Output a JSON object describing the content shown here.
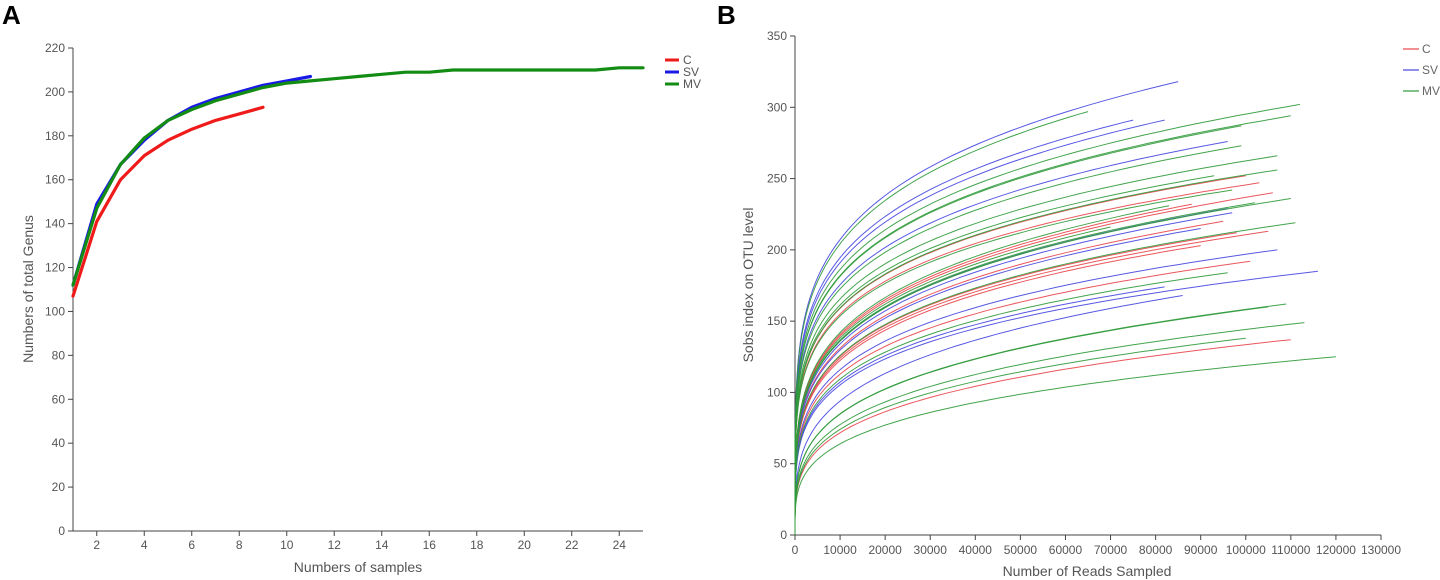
{
  "colors": {
    "C": "#ef1a1a",
    "SV": "#1a1ae6",
    "MV": "#138c13",
    "C_thin": "#e8454b",
    "SV_thin": "#4646e0",
    "MV_thin": "#2f9a3a"
  },
  "chart_data": [
    {
      "panel": "A",
      "type": "line",
      "title": "",
      "xlabel": "Numbers of samples",
      "ylabel": "Numbers of total Genus",
      "xlim": [
        1,
        25
      ],
      "ylim": [
        0,
        220
      ],
      "xticks": [
        2,
        4,
        6,
        8,
        10,
        12,
        14,
        16,
        18,
        20,
        22,
        24
      ],
      "yticks": [
        0,
        20,
        40,
        60,
        80,
        100,
        120,
        140,
        160,
        180,
        200,
        220
      ],
      "legend_position": "top-right",
      "series": [
        {
          "name": "C",
          "color_key": "C",
          "x": [
            1,
            2,
            3,
            4,
            5,
            6,
            7,
            8,
            9
          ],
          "y": [
            107,
            141,
            160,
            171,
            178,
            183,
            187,
            190,
            193
          ]
        },
        {
          "name": "SV",
          "color_key": "SV",
          "x": [
            1,
            2,
            3,
            4,
            5,
            6,
            7,
            8,
            9,
            10,
            11
          ],
          "y": [
            112,
            149,
            167,
            178,
            187,
            193,
            197,
            200,
            203,
            205,
            207
          ]
        },
        {
          "name": "MV",
          "color_key": "MV",
          "x": [
            1,
            2,
            3,
            4,
            5,
            6,
            7,
            8,
            9,
            10,
            11,
            12,
            13,
            14,
            15,
            16,
            17,
            18,
            19,
            20,
            21,
            22,
            23,
            24,
            25
          ],
          "y": [
            112,
            147,
            167,
            179,
            187,
            192,
            196,
            199,
            202,
            204,
            205,
            206,
            207,
            208,
            209,
            209,
            210,
            210,
            210,
            210,
            210,
            210,
            210,
            211,
            211
          ]
        }
      ]
    },
    {
      "panel": "B",
      "type": "line",
      "title": "",
      "xlabel": "Number of Reads Sampled",
      "ylabel": "Sobs index on OTU level",
      "xlim": [
        0,
        130000
      ],
      "ylim": [
        0,
        350
      ],
      "xticks": [
        0,
        10000,
        20000,
        30000,
        40000,
        50000,
        60000,
        70000,
        80000,
        90000,
        100000,
        110000,
        120000,
        130000
      ],
      "yticks": [
        0,
        50,
        100,
        150,
        200,
        250,
        300,
        350
      ],
      "legend_position": "top-right",
      "curve_model": "rarefaction curves; each sample listed as final reads sampled and final Sobs value",
      "series": [
        {
          "name": "C",
          "color_key": "C_thin",
          "samples": [
            {
              "reads": 101000,
              "sobs": 192
            },
            {
              "reads": 110000,
              "sobs": 137
            },
            {
              "reads": 105000,
              "sobs": 213
            },
            {
              "reads": 106000,
              "sobs": 240
            },
            {
              "reads": 95000,
              "sobs": 220
            },
            {
              "reads": 100000,
              "sobs": 252
            },
            {
              "reads": 88000,
              "sobs": 232
            },
            {
              "reads": 98000,
              "sobs": 212
            },
            {
              "reads": 90000,
              "sobs": 203
            },
            {
              "reads": 103000,
              "sobs": 247
            }
          ]
        },
        {
          "name": "SV",
          "color_key": "SV_thin",
          "samples": [
            {
              "reads": 85000,
              "sobs": 318
            },
            {
              "reads": 75000,
              "sobs": 291
            },
            {
              "reads": 82000,
              "sobs": 291
            },
            {
              "reads": 96000,
              "sobs": 276
            },
            {
              "reads": 97000,
              "sobs": 226
            },
            {
              "reads": 96000,
              "sobs": 229
            },
            {
              "reads": 107000,
              "sobs": 200
            },
            {
              "reads": 116000,
              "sobs": 185
            },
            {
              "reads": 86000,
              "sobs": 168
            },
            {
              "reads": 82000,
              "sobs": 174
            },
            {
              "reads": 90000,
              "sobs": 215
            }
          ]
        },
        {
          "name": "MV",
          "color_key": "MV_thin",
          "samples": [
            {
              "reads": 112000,
              "sobs": 302
            },
            {
              "reads": 110000,
              "sobs": 294
            },
            {
              "reads": 99000,
              "sobs": 287
            },
            {
              "reads": 65000,
              "sobs": 297
            },
            {
              "reads": 107000,
              "sobs": 266
            },
            {
              "reads": 107000,
              "sobs": 256
            },
            {
              "reads": 97000,
              "sobs": 242
            },
            {
              "reads": 110000,
              "sobs": 236
            },
            {
              "reads": 111000,
              "sobs": 219
            },
            {
              "reads": 102000,
              "sobs": 233
            },
            {
              "reads": 96000,
              "sobs": 184
            },
            {
              "reads": 109000,
              "sobs": 162
            },
            {
              "reads": 113000,
              "sobs": 149
            },
            {
              "reads": 120000,
              "sobs": 125
            },
            {
              "reads": 105000,
              "sobs": 160
            },
            {
              "reads": 100000,
              "sobs": 138
            },
            {
              "reads": 93000,
              "sobs": 252
            },
            {
              "reads": 83000,
              "sobs": 231
            },
            {
              "reads": 70000,
              "sobs": 216
            },
            {
              "reads": 99000,
              "sobs": 273
            }
          ]
        }
      ]
    }
  ],
  "panels": {
    "a_letter": "A",
    "b_letter": "B"
  },
  "legend_a": [
    {
      "label": "C",
      "color_key": "C"
    },
    {
      "label": "SV",
      "color_key": "SV"
    },
    {
      "label": "MV",
      "color_key": "MV"
    }
  ],
  "legend_b": [
    {
      "label": "C",
      "color_key": "C_thin"
    },
    {
      "label": "SV",
      "color_key": "SV_thin"
    },
    {
      "label": "MV",
      "color_key": "MV_thin"
    }
  ]
}
